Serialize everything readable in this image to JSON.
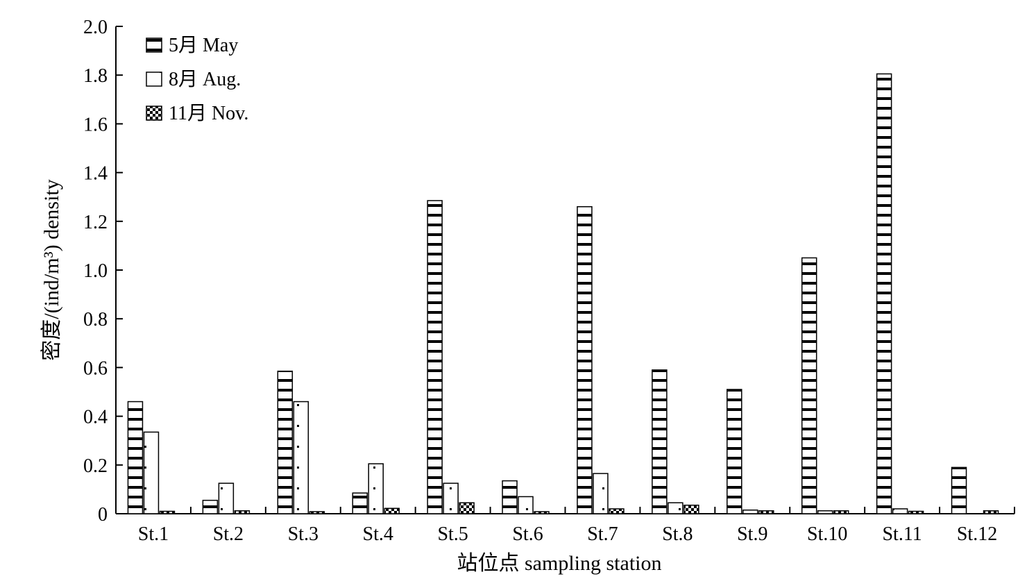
{
  "chart_data": {
    "type": "bar",
    "title": "",
    "xlabel": "站位点 sampling station",
    "ylabel": "密度/(ind/m³) density",
    "ylim": [
      0,
      2.0
    ],
    "yticks": [
      "0",
      "0.2",
      "0.4",
      "0.6",
      "0.8",
      "1.0",
      "1.2",
      "1.4",
      "1.6",
      "1.8",
      "2.0"
    ],
    "categories": [
      "St.1",
      "St.2",
      "St.3",
      "St.4",
      "St.5",
      "St.6",
      "St.7",
      "St.8",
      "St.9",
      "St.10",
      "St.11",
      "St.12"
    ],
    "series": [
      {
        "name": "5月 May",
        "pattern": "horizontal-stripes",
        "values": [
          0.46,
          0.055,
          0.585,
          0.085,
          1.285,
          0.135,
          1.26,
          0.59,
          0.51,
          1.05,
          1.805,
          0.19
        ]
      },
      {
        "name": "8月 Aug.",
        "pattern": "dots",
        "values": [
          0.335,
          0.125,
          0.46,
          0.205,
          0.125,
          0.07,
          0.165,
          0.045,
          0.015,
          0.012,
          0.02,
          0.0
        ]
      },
      {
        "name": "11月 Nov.",
        "pattern": "checker",
        "values": [
          0.01,
          0.012,
          0.008,
          0.022,
          0.045,
          0.005,
          0.02,
          0.035,
          0.012,
          0.012,
          0.01,
          0.012
        ]
      }
    ],
    "legend_position": "top-left",
    "grid": false,
    "colors": {
      "bar_fill": "#ffffff",
      "bar_stroke": "#000000",
      "pattern": "#000000"
    }
  }
}
